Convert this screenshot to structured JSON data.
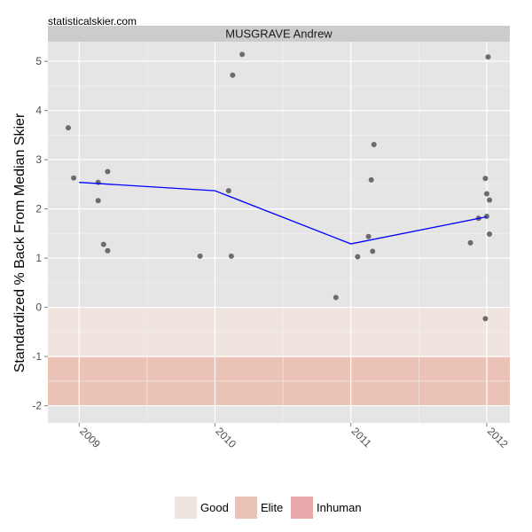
{
  "site": "statisticalskier.com",
  "colors": {
    "panel_bg": "#e5e5e5",
    "grid_major": "#ffffff",
    "grid_minor": "#f2f2f2",
    "strip_bg": "#cccccc",
    "point": "#6b6b6b",
    "line": "#0000ff",
    "good": "#f0e4de",
    "elite": "#eac3b6",
    "inhuman": "#e6a8a8"
  },
  "chart_data": {
    "type": "scatter",
    "title": "MUSGRAVE Andrew",
    "xlabel": "",
    "ylabel": "Standardized % Back From Median Skier",
    "xlim": [
      2008.77,
      2012.17
    ],
    "ylim": [
      -2.35,
      5.4
    ],
    "x_ticks": [
      2009,
      2010,
      2011,
      2012
    ],
    "x_tick_labels": [
      "2009",
      "2010",
      "2011",
      "2012"
    ],
    "y_ticks": [
      -2,
      -1,
      0,
      1,
      2,
      3,
      4,
      5
    ],
    "y_tick_labels": [
      "-2",
      "-1",
      "0",
      "1",
      "2",
      "3",
      "4",
      "5"
    ],
    "grid": true,
    "bands": [
      {
        "name": "Good",
        "ymin": -1,
        "ymax": 0,
        "color": "#f0e4de"
      },
      {
        "name": "Elite",
        "ymin": -2,
        "ymax": -1,
        "color": "#eac3b6"
      }
    ],
    "series": [
      {
        "kind": "points",
        "points": [
          {
            "x": 2008.92,
            "y": 3.65
          },
          {
            "x": 2008.96,
            "y": 2.63
          },
          {
            "x": 2009.14,
            "y": 2.54
          },
          {
            "x": 2009.14,
            "y": 2.17
          },
          {
            "x": 2009.18,
            "y": 1.28
          },
          {
            "x": 2009.21,
            "y": 2.76
          },
          {
            "x": 2009.21,
            "y": 1.15
          },
          {
            "x": 2009.89,
            "y": 1.04
          },
          {
            "x": 2010.1,
            "y": 2.37
          },
          {
            "x": 2010.12,
            "y": 1.04
          },
          {
            "x": 2010.13,
            "y": 4.72
          },
          {
            "x": 2010.2,
            "y": 5.14
          },
          {
            "x": 2010.89,
            "y": 0.2
          },
          {
            "x": 2011.05,
            "y": 1.03
          },
          {
            "x": 2011.13,
            "y": 1.44
          },
          {
            "x": 2011.15,
            "y": 2.59
          },
          {
            "x": 2011.16,
            "y": 1.14
          },
          {
            "x": 2011.17,
            "y": 3.31
          },
          {
            "x": 2011.88,
            "y": 1.31
          },
          {
            "x": 2011.94,
            "y": 1.81
          },
          {
            "x": 2011.99,
            "y": 2.62
          },
          {
            "x": 2011.99,
            "y": -0.23
          },
          {
            "x": 2012.0,
            "y": 1.85
          },
          {
            "x": 2012.0,
            "y": 2.31
          },
          {
            "x": 2012.01,
            "y": 5.09
          },
          {
            "x": 2012.02,
            "y": 2.18
          },
          {
            "x": 2012.02,
            "y": 1.49
          }
        ]
      },
      {
        "kind": "line",
        "points": [
          {
            "x": 2009.0,
            "y": 2.54
          },
          {
            "x": 2010.0,
            "y": 2.37
          },
          {
            "x": 2011.0,
            "y": 1.29
          },
          {
            "x": 2012.0,
            "y": 1.84
          }
        ]
      }
    ],
    "legend": {
      "position": "bottom",
      "items": [
        {
          "label": "Good",
          "color": "#f0e4de"
        },
        {
          "label": "Elite",
          "color": "#eac3b6"
        },
        {
          "label": "Inhuman",
          "color": "#e6a8a8"
        }
      ]
    }
  }
}
